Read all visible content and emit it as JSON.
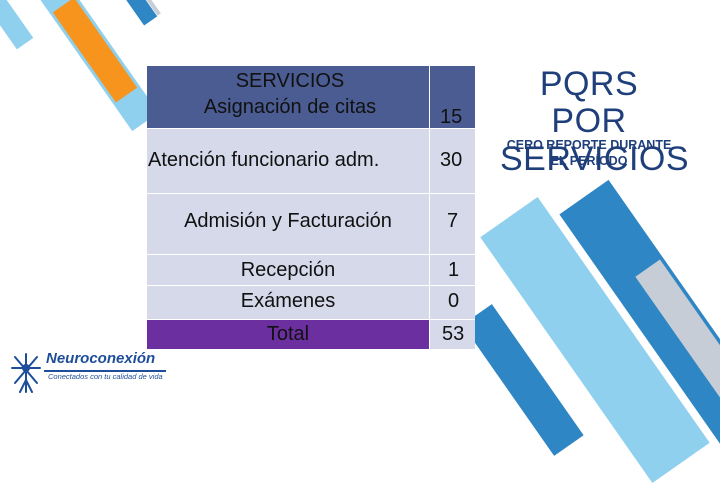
{
  "table": {
    "header": {
      "label_line1": "SERVICIOS",
      "label_line2": "Asignación de citas",
      "value": "15"
    },
    "rows": [
      {
        "label": "Atención funcionario adm.",
        "value": "30"
      },
      {
        "label": "Admisión y Facturación",
        "value": "7"
      },
      {
        "label": "Recepción",
        "value": "1"
      },
      {
        "label": "Exámenes",
        "value": "0"
      }
    ],
    "total": {
      "label": "Total",
      "value": "53"
    }
  },
  "side": {
    "title": "PQRS POR SERVICIOS",
    "note": "CERO REPORTE DURANTE EL PERÍODO"
  },
  "logo": {
    "name": "Neuroconexión",
    "tagline": "Conectados con tu calidad de vida"
  },
  "colors": {
    "header_band": "#4a5c92",
    "total_band": "#6b2fa0",
    "table_bg": "#d5d9ea",
    "accent_orange": "#f7941d",
    "accent_blue": "#2f86c4",
    "accent_light_blue": "#8fd0ee",
    "title_text": "#1f3f7a"
  }
}
